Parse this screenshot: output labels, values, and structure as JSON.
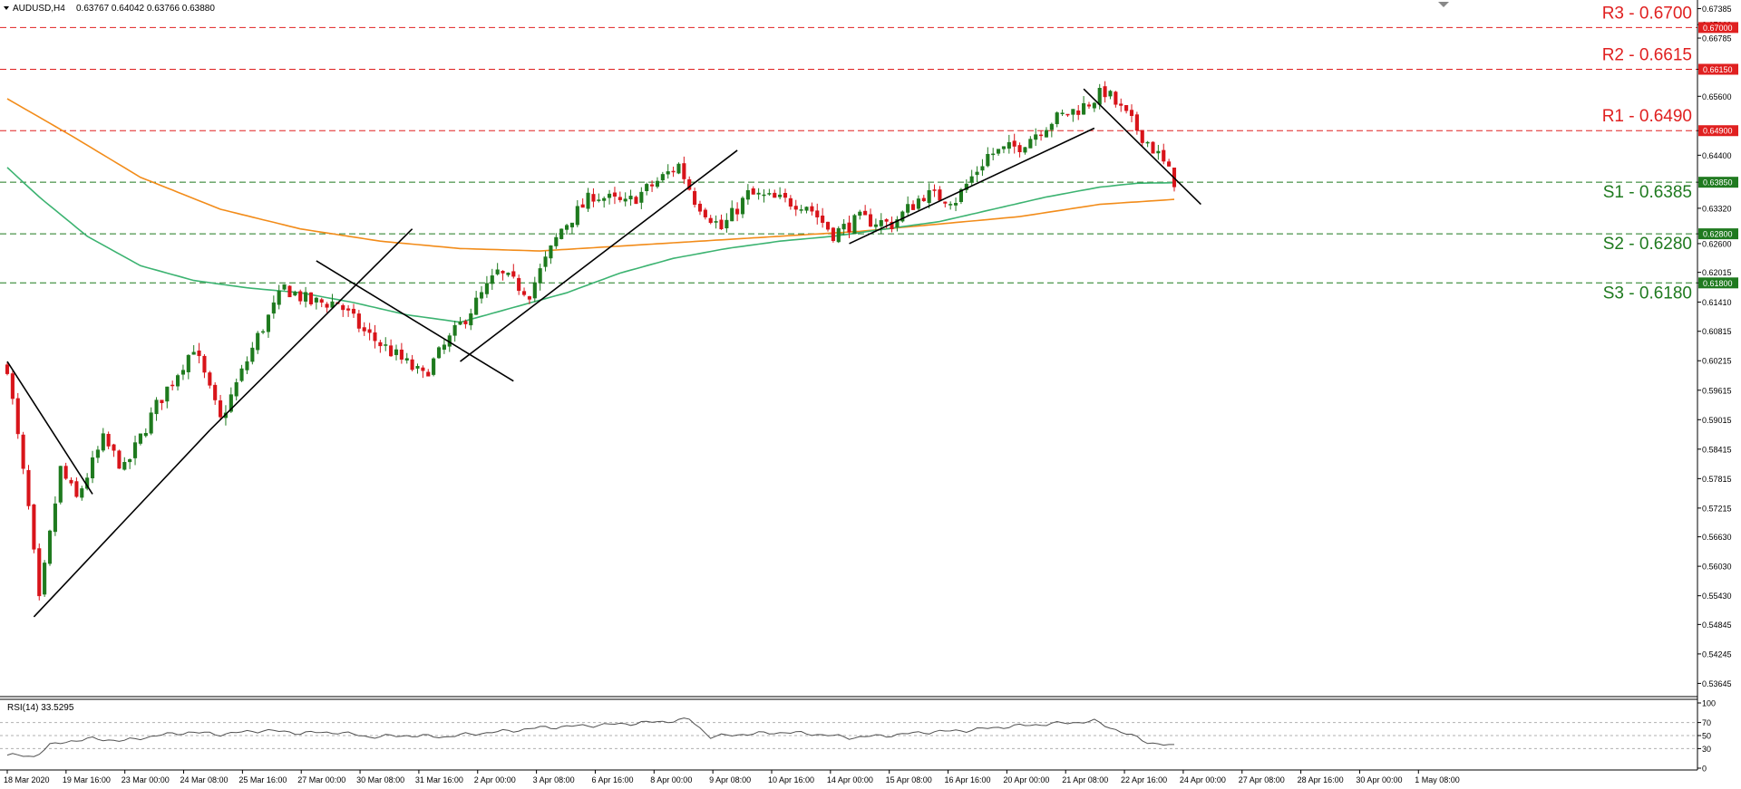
{
  "header": {
    "symbol": "AUDUSD,H4",
    "ohlc": "0.63767 0.64042 0.63766 0.63880"
  },
  "rsi": {
    "label": "RSI(14) 33.5295",
    "ticks": [
      "100",
      "70",
      "50",
      "30",
      "0"
    ]
  },
  "colors": {
    "bull": "#1e7a1e",
    "bear": "#d8141a",
    "resistance": "#e02020",
    "support": "#1f7a1f",
    "ma_fast": "#3cb371",
    "ma_slow": "#f28c1a",
    "trendline": "#000000"
  },
  "chart_data": {
    "type": "candlestick",
    "x_ticks": [
      "18 Mar 2020",
      "19 Mar 16:00",
      "23 Mar 00:00",
      "24 Mar 08:00",
      "25 Mar 16:00",
      "27 Mar 00:00",
      "30 Mar 08:00",
      "31 Mar 16:00",
      "2 Apr 00:00",
      "3 Apr 08:00",
      "6 Apr 16:00",
      "8 Apr 00:00",
      "9 Apr 08:00",
      "10 Apr 16:00",
      "14 Apr 00:00",
      "15 Apr 08:00",
      "16 Apr 16:00",
      "20 Apr 00:00",
      "21 Apr 08:00",
      "22 Apr 16:00",
      "24 Apr 00:00",
      "27 Apr 08:00",
      "28 Apr 16:00",
      "30 Apr 00:00",
      "1 May 08:00"
    ],
    "y_ticks": [
      "0.67385",
      "0.67060",
      "0.66785",
      "0.66150",
      "0.65600",
      "0.64900",
      "0.64400",
      "0.63850",
      "0.63320",
      "0.62800",
      "0.62600",
      "0.62015",
      "0.61800",
      "0.61410",
      "0.60815",
      "0.60215",
      "0.59615",
      "0.59015",
      "0.58415",
      "0.57815",
      "0.57215",
      "0.56630",
      "0.56030",
      "0.55430",
      "0.54845",
      "0.54245",
      "0.53645"
    ],
    "ylim": [
      0.5345,
      0.6745
    ],
    "levels": [
      {
        "name": "R3 - 0.6700",
        "value": 0.67,
        "badge": "0.67000",
        "kind": "resistance"
      },
      {
        "name": "R2 - 0.6615",
        "value": 0.6615,
        "badge": "0.66150",
        "kind": "resistance"
      },
      {
        "name": "R1 - 0.6490",
        "value": 0.649,
        "badge": "0.64900",
        "kind": "resistance"
      },
      {
        "name": "S1 - 0.6385",
        "value": 0.6385,
        "badge": "0.63850",
        "kind": "support"
      },
      {
        "name": "S2 - 0.6280",
        "value": 0.628,
        "badge": "0.62800",
        "kind": "support"
      },
      {
        "name": "S3 - 0.6180",
        "value": 0.618,
        "badge": "0.61800",
        "kind": "support"
      }
    ],
    "close_anchors": [
      [
        0,
        0.601
      ],
      [
        4,
        0.572
      ],
      [
        6,
        0.553
      ],
      [
        10,
        0.58
      ],
      [
        13,
        0.574
      ],
      [
        18,
        0.586
      ],
      [
        22,
        0.58
      ],
      [
        28,
        0.593
      ],
      [
        35,
        0.605
      ],
      [
        40,
        0.59
      ],
      [
        47,
        0.607
      ],
      [
        52,
        0.617
      ],
      [
        57,
        0.614
      ],
      [
        62,
        0.614
      ],
      [
        67,
        0.608
      ],
      [
        72,
        0.604
      ],
      [
        78,
        0.599
      ],
      [
        86,
        0.611
      ],
      [
        92,
        0.62
      ],
      [
        98,
        0.616
      ],
      [
        104,
        0.629
      ],
      [
        110,
        0.636
      ],
      [
        116,
        0.634
      ],
      [
        120,
        0.637
      ],
      [
        126,
        0.642
      ],
      [
        129,
        0.635
      ],
      [
        134,
        0.629
      ],
      [
        139,
        0.636
      ],
      [
        144,
        0.635
      ],
      [
        150,
        0.634
      ],
      [
        155,
        0.628
      ],
      [
        160,
        0.631
      ],
      [
        166,
        0.63
      ],
      [
        172,
        0.636
      ],
      [
        178,
        0.635
      ],
      [
        184,
        0.644
      ],
      [
        190,
        0.646
      ],
      [
        196,
        0.651
      ],
      [
        202,
        0.654
      ],
      [
        206,
        0.657
      ],
      [
        210,
        0.652
      ],
      [
        216,
        0.644
      ],
      [
        219,
        0.6388
      ]
    ],
    "ma_fast_anchors": [
      [
        0,
        0.6415
      ],
      [
        6,
        0.6355
      ],
      [
        15,
        0.6275
      ],
      [
        25,
        0.6215
      ],
      [
        35,
        0.6185
      ],
      [
        45,
        0.617
      ],
      [
        55,
        0.616
      ],
      [
        65,
        0.614
      ],
      [
        75,
        0.6115
      ],
      [
        85,
        0.61
      ],
      [
        95,
        0.613
      ],
      [
        105,
        0.616
      ],
      [
        115,
        0.62
      ],
      [
        125,
        0.623
      ],
      [
        135,
        0.625
      ],
      [
        145,
        0.6265
      ],
      [
        155,
        0.6275
      ],
      [
        165,
        0.629
      ],
      [
        175,
        0.6305
      ],
      [
        185,
        0.633
      ],
      [
        195,
        0.6355
      ],
      [
        205,
        0.6375
      ],
      [
        212,
        0.6383
      ],
      [
        219,
        0.6384
      ]
    ],
    "ma_slow_anchors": [
      [
        0,
        0.6555
      ],
      [
        12,
        0.648
      ],
      [
        25,
        0.6395
      ],
      [
        40,
        0.633
      ],
      [
        55,
        0.629
      ],
      [
        70,
        0.6265
      ],
      [
        85,
        0.625
      ],
      [
        100,
        0.6245
      ],
      [
        115,
        0.6255
      ],
      [
        130,
        0.6265
      ],
      [
        145,
        0.6275
      ],
      [
        160,
        0.6285
      ],
      [
        175,
        0.63
      ],
      [
        190,
        0.6315
      ],
      [
        205,
        0.634
      ],
      [
        219,
        0.635
      ]
    ],
    "trendlines": [
      {
        "from": [
          0,
          0.602
        ],
        "to": [
          16,
          0.575
        ]
      },
      {
        "from": [
          5,
          0.55
        ],
        "to": [
          38,
          0.588
        ]
      },
      {
        "from": [
          38,
          0.588
        ],
        "to": [
          76,
          0.629
        ]
      },
      {
        "from": [
          58,
          0.6225
        ],
        "to": [
          95,
          0.598
        ]
      },
      {
        "from": [
          85,
          0.602
        ],
        "to": [
          137,
          0.645
        ]
      },
      {
        "from": [
          158,
          0.626
        ],
        "to": [
          204,
          0.6495
        ]
      },
      {
        "from": [
          202,
          0.6575
        ],
        "to": [
          224,
          0.634
        ]
      }
    ],
    "rsi_values": [
      [
        0,
        20
      ],
      [
        5,
        18
      ],
      [
        8,
        35
      ],
      [
        12,
        42
      ],
      [
        16,
        45
      ],
      [
        22,
        42
      ],
      [
        28,
        50
      ],
      [
        34,
        55
      ],
      [
        40,
        52
      ],
      [
        48,
        58
      ],
      [
        55,
        54
      ],
      [
        62,
        55
      ],
      [
        68,
        48
      ],
      [
        75,
        50
      ],
      [
        82,
        48
      ],
      [
        88,
        53
      ],
      [
        94,
        57
      ],
      [
        100,
        62
      ],
      [
        108,
        65
      ],
      [
        116,
        68
      ],
      [
        124,
        72
      ],
      [
        128,
        75
      ],
      [
        132,
        48
      ],
      [
        138,
        52
      ],
      [
        146,
        55
      ],
      [
        152,
        52
      ],
      [
        158,
        47
      ],
      [
        165,
        50
      ],
      [
        172,
        55
      ],
      [
        180,
        58
      ],
      [
        188,
        64
      ],
      [
        196,
        68
      ],
      [
        204,
        72
      ],
      [
        209,
        56
      ],
      [
        214,
        40
      ],
      [
        219,
        33.5
      ]
    ],
    "n_candles": 220
  }
}
